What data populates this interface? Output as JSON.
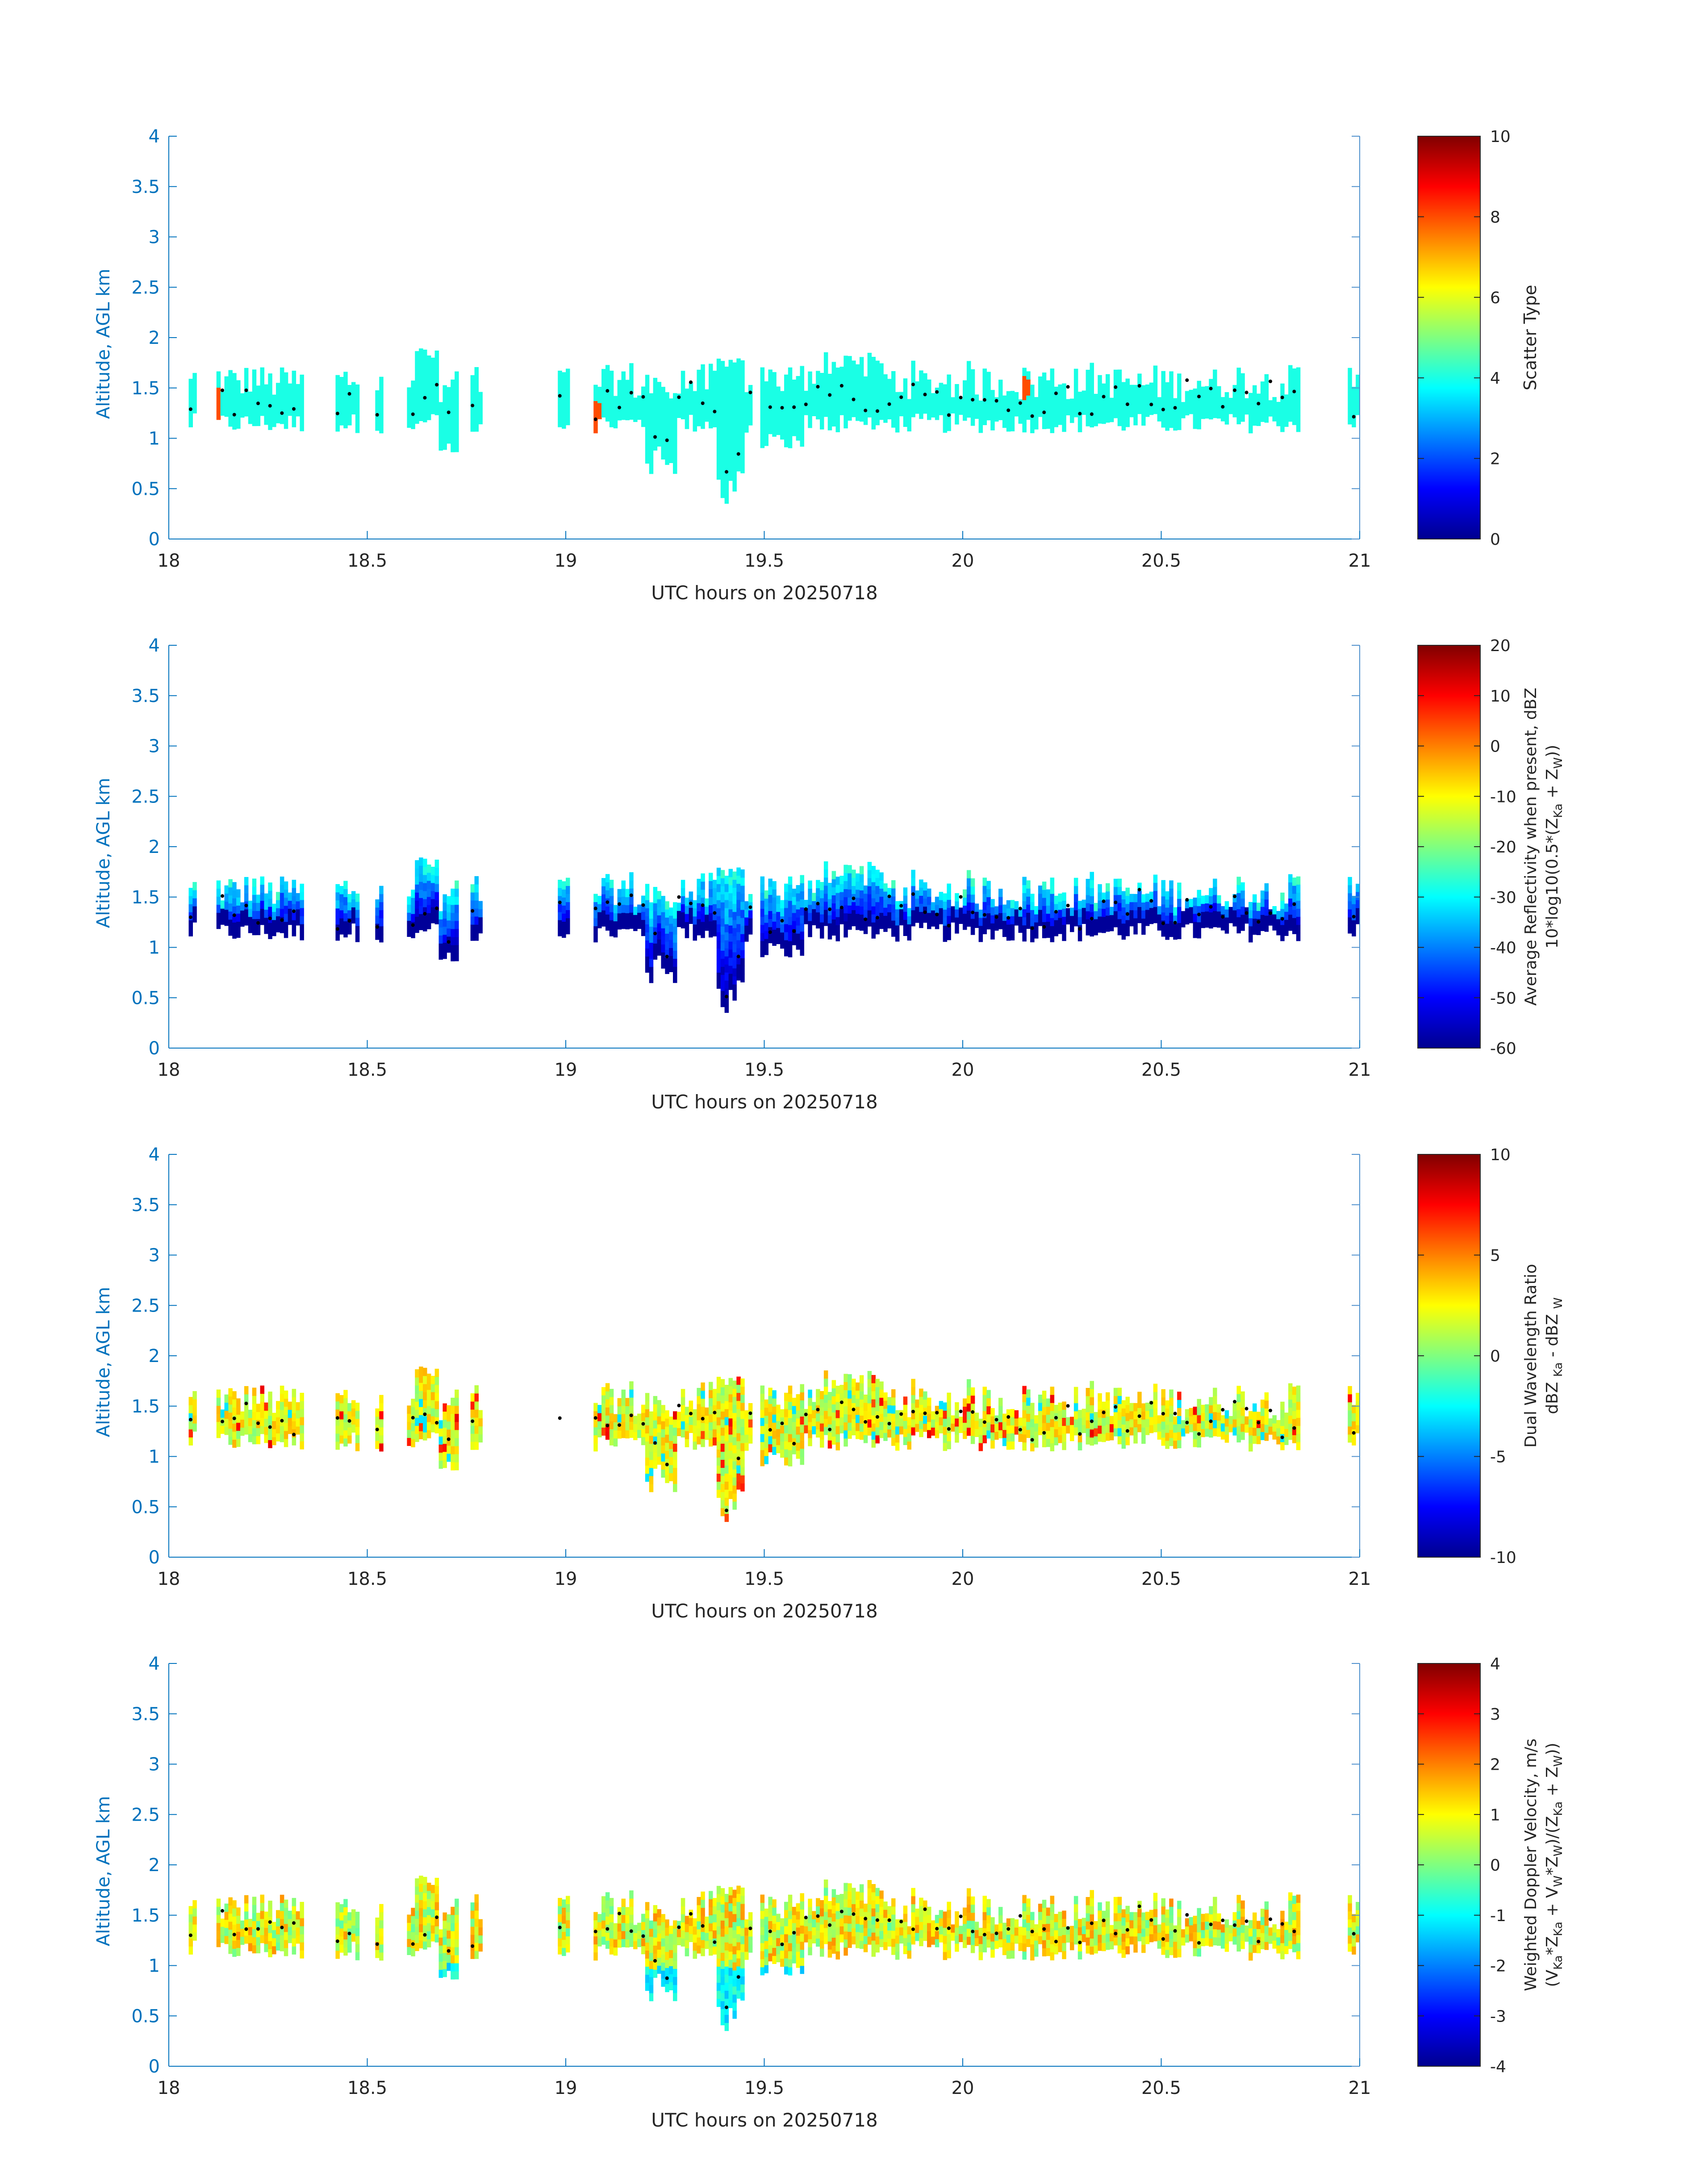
{
  "figure": {
    "xlabel": "UTC hours on 20250718",
    "ylabel": "Altitude, AGL km"
  },
  "colors": {
    "axis_left": "#0072BD",
    "frame": "#4d8fcc",
    "text": "#262626",
    "marker": "#000000"
  },
  "colormap": "jet",
  "chart_data": [
    {
      "type": "heatmap",
      "title": "",
      "xlabel": "UTC hours on 20250718",
      "ylabel": "Altitude, AGL km",
      "xlim": [
        18,
        21
      ],
      "ylim": [
        0,
        4
      ],
      "xticks": [
        "18",
        "18.5",
        "19",
        "19.5",
        "20",
        "20.5",
        "21"
      ],
      "yticks": [
        "0",
        "0.5",
        "1",
        "1.5",
        "2",
        "2.5",
        "3",
        "3.5",
        "4"
      ],
      "colorbar": {
        "label": "Scatter Type",
        "clim": [
          0,
          10
        ],
        "ticks": [
          "0",
          "2",
          "4",
          "6",
          "8",
          "10"
        ]
      },
      "dominant_value": 4,
      "other_values": [
        {
          "value": 8,
          "note": "isolated cells near 18.12, 19.07, 20.16 h"
        }
      ],
      "cloud_top_km": [
        [
          18.05,
          1.6
        ],
        [
          18.2,
          1.65
        ],
        [
          18.3,
          1.6
        ],
        [
          18.5,
          1.65
        ],
        [
          18.65,
          1.9
        ],
        [
          18.75,
          1.4
        ],
        [
          19.1,
          1.6
        ],
        [
          19.3,
          1.75
        ],
        [
          19.45,
          1.8
        ],
        [
          19.7,
          1.85
        ],
        [
          20.0,
          1.7
        ],
        [
          20.3,
          1.8
        ],
        [
          20.6,
          1.7
        ],
        [
          20.8,
          1.7
        ],
        [
          20.98,
          1.55
        ]
      ],
      "cloud_base_km": [
        [
          18.05,
          1.1
        ],
        [
          18.2,
          1.0
        ],
        [
          18.5,
          1.05
        ],
        [
          18.7,
          0.75
        ],
        [
          19.1,
          1.05
        ],
        [
          19.3,
          0.6
        ],
        [
          19.42,
          0.3
        ],
        [
          19.6,
          1.05
        ],
        [
          20.0,
          1.05
        ],
        [
          20.5,
          1.05
        ],
        [
          20.8,
          1.05
        ],
        [
          20.98,
          1.05
        ]
      ],
      "markers": "black dots at approx. 1.1–1.5 km tracking cloud base"
    },
    {
      "type": "heatmap",
      "title": "",
      "xlabel": "UTC hours on 20250718",
      "ylabel": "Altitude, AGL km",
      "xlim": [
        18,
        21
      ],
      "ylim": [
        0,
        4
      ],
      "xticks": [
        "18",
        "18.5",
        "19",
        "19.5",
        "20",
        "20.5",
        "21"
      ],
      "yticks": [
        "0",
        "0.5",
        "1",
        "1.5",
        "2",
        "2.5",
        "3",
        "3.5",
        "4"
      ],
      "colorbar": {
        "label_line1": "Average Reflectivity when present, dBZ",
        "label_line2": "10*log10(0.5*(Z",
        "sub_ka": "Ka",
        "plus_text": " + Z",
        "sub_w": "W",
        "close_text": "))",
        "clim": [
          -60,
          20
        ],
        "ticks": [
          "-60",
          "-50",
          "-40",
          "-30",
          "-20",
          "-10",
          "0",
          "10",
          "20"
        ]
      },
      "value_range_shown": [
        -60,
        -25
      ],
      "cloud_top_km": [
        [
          18.65,
          1.9
        ],
        [
          19.3,
          1.75
        ],
        [
          19.45,
          1.8
        ],
        [
          19.7,
          1.85
        ],
        [
          20.8,
          1.7
        ]
      ],
      "cloud_base_km": [
        [
          18.7,
          0.6
        ],
        [
          19.3,
          0.55
        ],
        [
          19.42,
          0.25
        ],
        [
          20.0,
          1.05
        ]
      ],
      "markers": "black dots at approx. 1.1–1.5 km"
    },
    {
      "type": "heatmap",
      "title": "",
      "xlabel": "UTC hours on 20250718",
      "ylabel": "Altitude, AGL km",
      "xlim": [
        18,
        21
      ],
      "ylim": [
        0,
        4
      ],
      "xticks": [
        "18",
        "18.5",
        "19",
        "19.5",
        "20",
        "20.5",
        "21"
      ],
      "yticks": [
        "0",
        "0.5",
        "1",
        "1.5",
        "2",
        "2.5",
        "3",
        "3.5",
        "4"
      ],
      "colorbar": {
        "label_line1": "Dual Wavelength Ratio",
        "label_line2_a": "dBZ ",
        "sub_ka": "Ka",
        "label_line2_b": " - dBZ ",
        "sub_w": "W",
        "clim": [
          -10,
          10
        ],
        "ticks": [
          "-10",
          "-5",
          "0",
          "5",
          "10"
        ]
      },
      "value_range_shown": [
        -3,
        8
      ],
      "typical_value": 2,
      "cloud_top_km": [
        [
          18.65,
          1.9
        ],
        [
          19.45,
          1.8
        ],
        [
          19.7,
          1.85
        ],
        [
          20.8,
          1.75
        ]
      ],
      "cloud_base_km": [
        [
          18.7,
          0.85
        ],
        [
          19.42,
          0.5
        ],
        [
          20.0,
          1.1
        ]
      ],
      "markers": "black dots at approx. 1.1–1.5 km"
    },
    {
      "type": "heatmap",
      "title": "",
      "xlabel": "UTC hours on 20250718",
      "ylabel": "Altitude, AGL km",
      "xlim": [
        18,
        21
      ],
      "ylim": [
        0,
        4
      ],
      "xticks": [
        "18",
        "18.5",
        "19",
        "19.5",
        "20",
        "20.5",
        "21"
      ],
      "yticks": [
        "0",
        "0.5",
        "1",
        "1.5",
        "2",
        "2.5",
        "3",
        "3.5",
        "4"
      ],
      "colorbar": {
        "label_line1": "Weighted Doppler Velocity, m/s",
        "label_line2": "(V",
        "s_ka1": "Ka",
        "t1": "*Z",
        "s_ka2": "Ka",
        "t2": " + V",
        "s_w1": "W",
        "t3": "*Z",
        "s_w2": "W",
        "t4": ")/(Z",
        "s_ka3": "Ka",
        "t5": " + Z",
        "s_w3": "W",
        "t6": "))",
        "clim": [
          -4,
          4
        ],
        "ticks": [
          "-4",
          "-3",
          "-2",
          "-1",
          "0",
          "1",
          "2",
          "3",
          "4"
        ]
      },
      "value_range_shown": [
        -2,
        3
      ],
      "typical_value": 0.8,
      "cloud_top_km": [
        [
          18.65,
          1.9
        ],
        [
          19.45,
          1.85
        ],
        [
          19.7,
          1.85
        ],
        [
          20.8,
          1.7
        ]
      ],
      "cloud_base_km": [
        [
          18.7,
          0.6
        ],
        [
          19.42,
          0.25
        ],
        [
          20.0,
          1.05
        ]
      ],
      "markers": "black dots at approx. 1.1–1.5 km"
    }
  ]
}
